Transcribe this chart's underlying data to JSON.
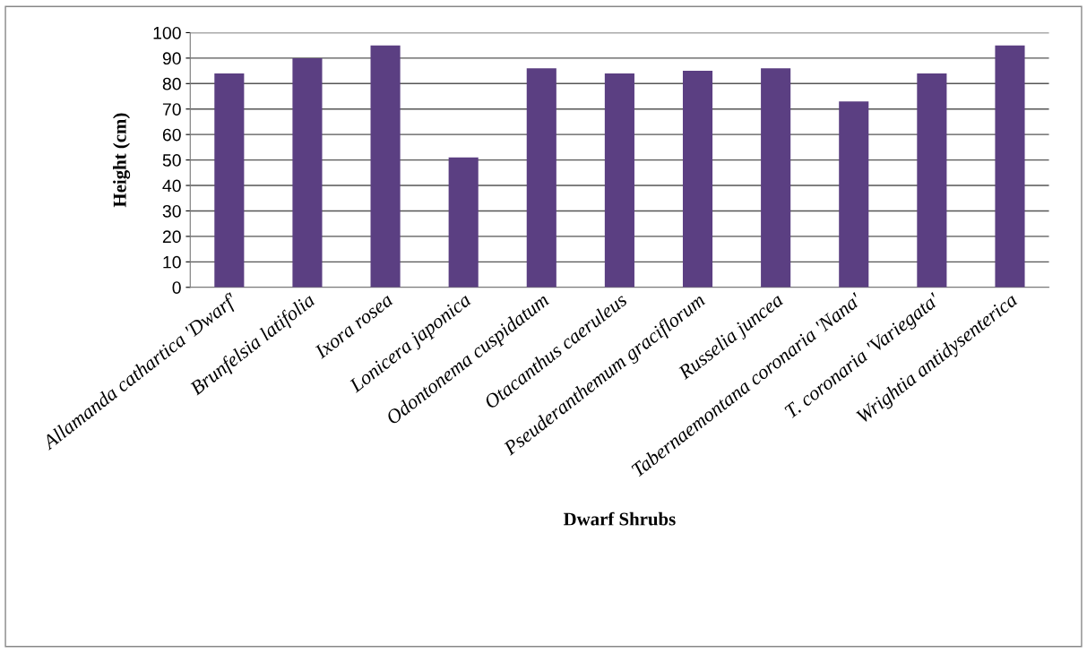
{
  "chart_data": {
    "type": "bar",
    "xlabel": "Dwarf Shrubs",
    "ylabel": "Height (cm)",
    "categories": [
      "Allamanda cathartica 'Dwarf'",
      "Brunfelsia latifolia",
      "Ixora rosea",
      "Lonicera japonica",
      "Odontonema cuspidatum",
      "Otacanthus caeruleus",
      "Pseuderanthemum graciflorum",
      "Russelia juncea",
      "Tabernaemontana coronaria 'Nana'",
      "T. coronaria 'Variegata'",
      "Wrightia antidysenterica"
    ],
    "values": [
      84,
      90,
      95,
      51,
      86,
      84,
      85,
      86,
      73,
      84,
      95
    ],
    "color": "#5b3f82",
    "ylim": [
      0,
      100
    ],
    "yticks": [
      0,
      10,
      20,
      30,
      40,
      50,
      60,
      70,
      80,
      90,
      100
    ],
    "grid": "y"
  }
}
